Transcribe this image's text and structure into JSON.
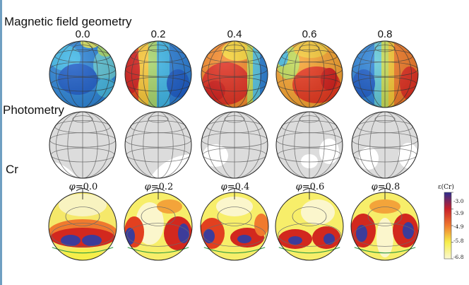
{
  "rows": {
    "magnetic": {
      "label": "Magnetic field geometry"
    },
    "photometry": {
      "label": "Photometry"
    },
    "cr": {
      "label": "Cr"
    }
  },
  "phases": [
    "0.0",
    "0.2",
    "0.4",
    "0.6",
    "0.8"
  ],
  "cr_phase_labels": [
    {
      "symbol": "φ",
      "text": "=0.0"
    },
    {
      "symbol": "φ",
      "text": "=0.2"
    },
    {
      "symbol": "φ",
      "text": "=0.4"
    },
    {
      "symbol": "φ",
      "text": "=0.6"
    },
    {
      "symbol": "φ",
      "text": "=0.8"
    }
  ],
  "colorbar": {
    "title": "ε(Cr)",
    "ticks": [
      "-3.0",
      "-3.9",
      "-4.9",
      "-5.8",
      "-6.8"
    ],
    "colors": [
      "#2b2c8f",
      "#c8202a",
      "#f07a2e",
      "#f6ee4a",
      "#fbf8d2"
    ]
  },
  "colors": {
    "magnetic_high": "#d8241e",
    "magnetic_low": "#1f6fd0",
    "photometry_fill": "#dcdcdc",
    "photometry_spot": "#ffffff",
    "cr_low": "#f9f6c8",
    "cr_high": "#2e2f8f",
    "edge_stripe": "#6f9fc2"
  }
}
